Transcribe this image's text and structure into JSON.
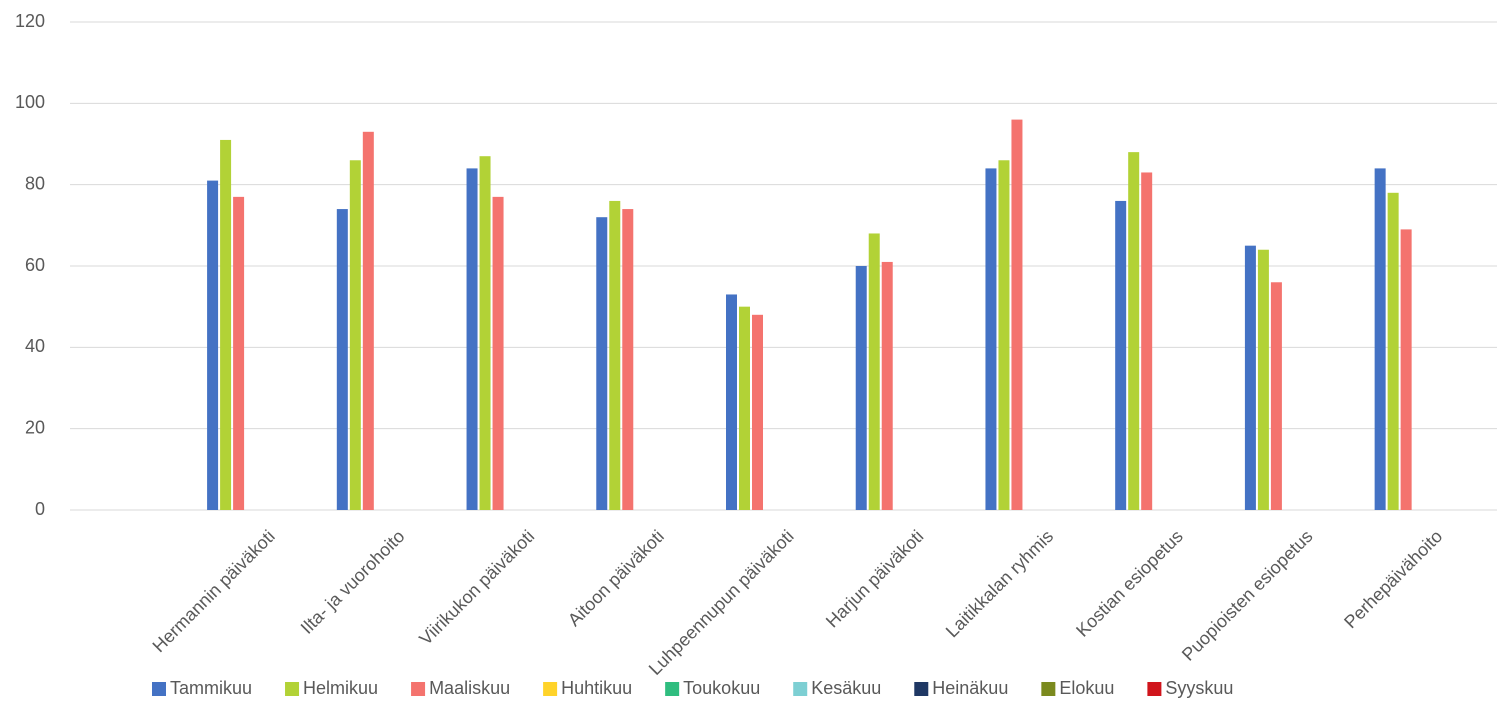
{
  "chart_data": {
    "type": "bar",
    "categories": [
      null,
      "Hermannin päiväkoti",
      "Ilta- ja vuorohoito",
      "Viirikukon päiväkoti",
      "Aitoon päiväkoti",
      "Luhpeennupun päiväkoti",
      "Harjun päiväkoti",
      "Laitikkalan ryhmis",
      "Kostian esiopetus",
      "Puopioisten esiopetus",
      "Perhepäivähoito"
    ],
    "series": [
      {
        "name": "Tammikuu",
        "color": "#4472c4",
        "values": [
          null,
          81,
          74,
          84,
          72,
          53,
          60,
          84,
          76,
          65,
          84
        ]
      },
      {
        "name": "Helmikuu",
        "color": "#b2d236",
        "values": [
          null,
          91,
          86,
          87,
          76,
          50,
          68,
          86,
          88,
          64,
          78
        ]
      },
      {
        "name": "Maaliskuu",
        "color": "#f4736e",
        "values": [
          null,
          77,
          93,
          77,
          74,
          48,
          61,
          96,
          83,
          56,
          69
        ]
      },
      {
        "name": "Huhtikuu",
        "color": "#ffd32a",
        "values": [
          null,
          null,
          null,
          null,
          null,
          null,
          null,
          null,
          null,
          null,
          null
        ]
      },
      {
        "name": "Toukokuu",
        "color": "#2fbd7f",
        "values": [
          null,
          null,
          null,
          null,
          null,
          null,
          null,
          null,
          null,
          null,
          null
        ]
      },
      {
        "name": "Kesäkuu",
        "color": "#7dcfd3",
        "values": [
          null,
          null,
          null,
          null,
          null,
          null,
          null,
          null,
          null,
          null,
          null
        ]
      },
      {
        "name": "Heinäkuu",
        "color": "#1f3864",
        "values": [
          null,
          null,
          null,
          null,
          null,
          null,
          null,
          null,
          null,
          null,
          null
        ]
      },
      {
        "name": "Elokuu",
        "color": "#7b8a1e",
        "values": [
          null,
          null,
          null,
          null,
          null,
          null,
          null,
          null,
          null,
          null,
          null
        ]
      },
      {
        "name": "Syyskuu",
        "color": "#d0151c",
        "values": [
          null,
          null,
          null,
          null,
          null,
          null,
          null,
          null,
          null,
          null,
          null
        ]
      }
    ],
    "ylim": [
      0,
      120
    ],
    "yticks": [
      0,
      20,
      40,
      60,
      80,
      100,
      120
    ],
    "grid": true,
    "legend": "bottom"
  }
}
